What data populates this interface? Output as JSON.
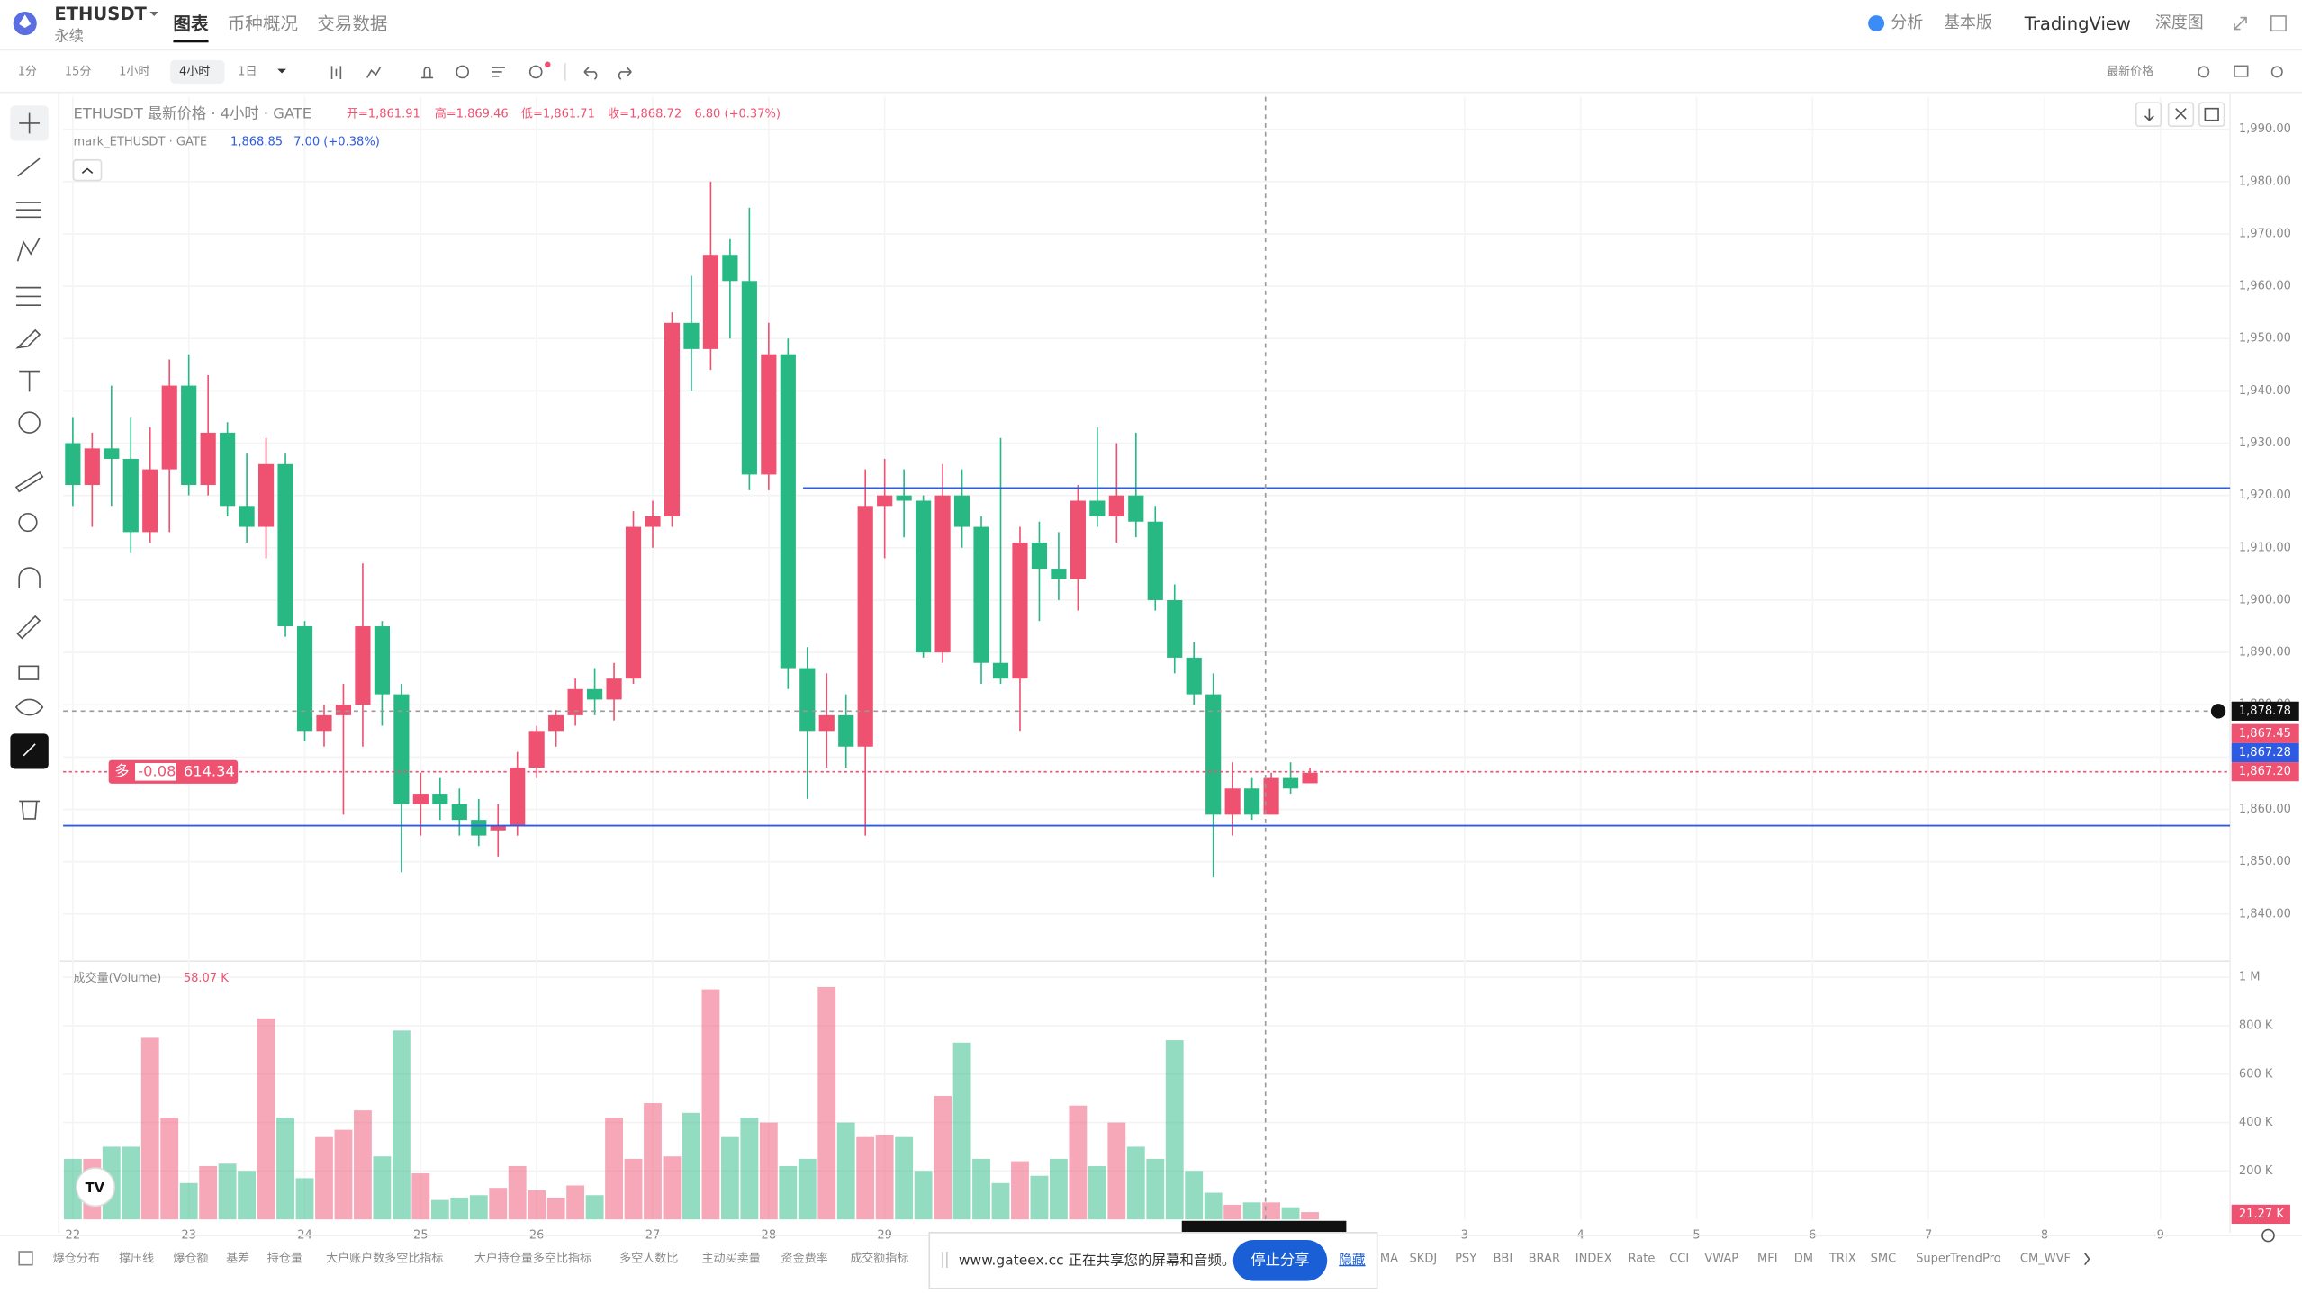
{
  "header": {
    "symbol": "ETHUSDT",
    "contract": "永续",
    "tabs": [
      "图表",
      "币种概况",
      "交易数据"
    ],
    "right_tabs": [
      "分析",
      "基本版",
      "TradingView",
      "深度图"
    ]
  },
  "toolbar": {
    "intervals": [
      "1分",
      "15分",
      "1小时",
      "4小时",
      "1日"
    ],
    "price_source": "最新价格"
  },
  "chart_data": {
    "type": "candlestick",
    "legend": {
      "title": "ETHUSDT 最新价格 · 4小时 · GATE",
      "open": "开=1,861.91",
      "high": "高=1,869.46",
      "low": "低=1,861.71",
      "close": "收=1,868.72",
      "change": "6.80 (+0.37%)",
      "mark_title": "mark_ETHUSDT · GATE",
      "mark_price": "1,868.85",
      "mark_change": "7.00 (+0.38%)",
      "volume_title": "成交量(Volume)",
      "volume_value": "58.07 K"
    },
    "up_color": "#ef5171",
    "down_color": "#27b884",
    "open": [
      1930,
      1922,
      1929,
      1927,
      1913,
      1925,
      1941,
      1922,
      1932,
      1918,
      1914,
      1926,
      1895,
      1875,
      1878,
      1880,
      1895,
      1882,
      1861,
      1863,
      1861,
      1858,
      1856,
      1857,
      1868,
      1875,
      1878,
      1883,
      1881,
      1885,
      1914,
      1916,
      1953,
      1948,
      1966,
      1961,
      1924,
      1947,
      1887,
      1875,
      1878,
      1872,
      1918,
      1920,
      1919,
      1890,
      1920,
      1914,
      1888,
      1885,
      1911,
      1906,
      1904,
      1919,
      1916,
      1920,
      1915,
      1900,
      1889,
      1882,
      1859,
      1864,
      1859,
      1866,
      1865
    ],
    "high": [
      1935,
      1932,
      1941,
      1935,
      1933,
      1946,
      1947,
      1943,
      1934,
      1928,
      1931,
      1928,
      1896,
      1880,
      1884,
      1907,
      1896,
      1884,
      1867,
      1866,
      1864,
      1862,
      1861,
      1871,
      1876,
      1879,
      1885,
      1887,
      1888,
      1917,
      1919,
      1955,
      1962,
      1980,
      1969,
      1975,
      1953,
      1950,
      1891,
      1886,
      1882,
      1925,
      1927,
      1925,
      1920,
      1926,
      1925,
      1916,
      1931,
      1914,
      1915,
      1913,
      1922,
      1933,
      1930,
      1932,
      1918,
      1903,
      1892,
      1886,
      1869,
      1866,
      1867,
      1869,
      1868
    ],
    "low": [
      1918,
      1914,
      1918,
      1909,
      1911,
      1913,
      1920,
      1920,
      1916,
      1911,
      1908,
      1893,
      1873,
      1872,
      1859,
      1872,
      1876,
      1848,
      1855,
      1858,
      1855,
      1853,
      1851,
      1855,
      1866,
      1872,
      1876,
      1878,
      1877,
      1884,
      1910,
      1914,
      1940,
      1944,
      1950,
      1921,
      1921,
      1883,
      1862,
      1868,
      1868,
      1855,
      1908,
      1912,
      1889,
      1888,
      1910,
      1884,
      1884,
      1875,
      1896,
      1900,
      1898,
      1914,
      1911,
      1912,
      1898,
      1886,
      1880,
      1847,
      1855,
      1858,
      1859,
      1863,
      1865
    ],
    "close": [
      1922,
      1929,
      1927,
      1913,
      1925,
      1941,
      1922,
      1932,
      1918,
      1914,
      1926,
      1895,
      1875,
      1878,
      1880,
      1895,
      1882,
      1861,
      1863,
      1861,
      1858,
      1855,
      1857,
      1868,
      1875,
      1878,
      1883,
      1881,
      1885,
      1914,
      1916,
      1953,
      1948,
      1966,
      1961,
      1924,
      1947,
      1887,
      1875,
      1878,
      1872,
      1918,
      1920,
      1919,
      1890,
      1920,
      1914,
      1888,
      1885,
      1911,
      1906,
      1904,
      1919,
      1916,
      1920,
      1915,
      1900,
      1889,
      1882,
      1859,
      1864,
      1859,
      1866,
      1864,
      1867
    ],
    "volume": [
      250000,
      250000,
      300000,
      300000,
      750000,
      420000,
      150000,
      220000,
      230000,
      200000,
      830000,
      420000,
      170000,
      340000,
      370000,
      450000,
      260000,
      780000,
      190000,
      80000,
      90000,
      100000,
      130000,
      220000,
      120000,
      90000,
      140000,
      100000,
      420000,
      250000,
      480000,
      260000,
      440000,
      950000,
      340000,
      420000,
      400000,
      220000,
      250000,
      960000,
      400000,
      340000,
      350000,
      340000,
      200000,
      510000,
      730000,
      250000,
      150000,
      240000,
      180000,
      250000,
      470000,
      220000,
      400000,
      300000,
      250000,
      740000,
      200000,
      110000,
      60000,
      70000,
      70000,
      50000,
      30000
    ],
    "xlim": [
      -0.5,
      111.6
    ],
    "xticks": [
      {
        "value": 0,
        "label": "22"
      },
      {
        "value": 6,
        "label": "23"
      },
      {
        "value": 12,
        "label": "24"
      },
      {
        "value": 18,
        "label": "25"
      },
      {
        "value": 24,
        "label": "26"
      },
      {
        "value": 30,
        "label": "27"
      },
      {
        "value": 36,
        "label": "28"
      },
      {
        "value": 42,
        "label": "29"
      },
      {
        "value": 72,
        "label": "3"
      },
      {
        "value": 78,
        "label": "4"
      },
      {
        "value": 84,
        "label": "5"
      },
      {
        "value": 90,
        "label": "6"
      },
      {
        "value": 96,
        "label": "7"
      },
      {
        "value": 102,
        "label": "8"
      },
      {
        "value": 108,
        "label": "9"
      }
    ],
    "ylim": [
      1831,
      1996.2
    ],
    "yticks": [
      {
        "value": 1840,
        "label": "1,840.00"
      },
      {
        "value": 1850,
        "label": "1,850.00"
      },
      {
        "value": 1860,
        "label": "1,860.00"
      },
      {
        "value": 1870,
        "label": "1,870.00"
      },
      {
        "value": 1880,
        "label": "1,880.00"
      },
      {
        "value": 1890,
        "label": "1,890.00"
      },
      {
        "value": 1900,
        "label": "1,900.00"
      },
      {
        "value": 1910,
        "label": "1,910.00"
      },
      {
        "value": 1920,
        "label": "1,920.00"
      },
      {
        "value": 1930,
        "label": "1,930.00"
      },
      {
        "value": 1940,
        "label": "1,940.00"
      },
      {
        "value": 1950,
        "label": "1,950.00"
      },
      {
        "value": 1960,
        "label": "1,960.00"
      },
      {
        "value": 1970,
        "label": "1,970.00"
      },
      {
        "value": 1980,
        "label": "1,980.00"
      },
      {
        "value": 1990,
        "label": "1,990.00"
      }
    ],
    "y2lim": [
      0,
      1067000
    ],
    "y2ticks": [
      {
        "value": 200000,
        "label": "200 K"
      },
      {
        "value": 400000,
        "label": "400 K"
      },
      {
        "value": 600000,
        "label": "600 K"
      },
      {
        "value": 800000,
        "label": "800 K"
      },
      {
        "value": 1000000,
        "label": "1 M"
      }
    ],
    "volume_last": {
      "value": 21270,
      "label": "21.27 K"
    },
    "hlines": [
      1921.4,
      1856.9
    ],
    "hline_color": "#2d5be3",
    "price_labels": [
      {
        "value": 1878.78,
        "label": "1,878.78",
        "color": "#111111"
      },
      {
        "value": 1867.45,
        "label": "1,867.45",
        "color": "#ef5171"
      },
      {
        "value": 1867.28,
        "label": "1,867.28",
        "color": "#2d5be3"
      },
      {
        "value": 1867.2,
        "label": "1,867.20",
        "color": "#ef5171"
      }
    ],
    "position": {
      "side": "多",
      "pnl": "-0.08",
      "size": "614.34",
      "price": 1867.2
    }
  },
  "indicators": [
    "爆仓分布",
    "撑压线",
    "爆仓额",
    "基差",
    "持仓量",
    "大户账户数多空比指标",
    "大户持仓量多空比指标",
    "多空人数比",
    "主动买卖量",
    "资金费率",
    "成交额指标",
    "MA",
    "SKDJ",
    "PSY",
    "BBI",
    "BRAR",
    "INDEX",
    "Rate",
    "CCI",
    "VWAP",
    "MFI",
    "DM",
    "TRIX",
    "SMC",
    "SuperTrendPro",
    "CM_WVF"
  ],
  "share_bar": {
    "message": "www.gateex.cc 正在共享您的屏幕和音频。",
    "stop": "停止分享",
    "hide": "隐藏"
  }
}
